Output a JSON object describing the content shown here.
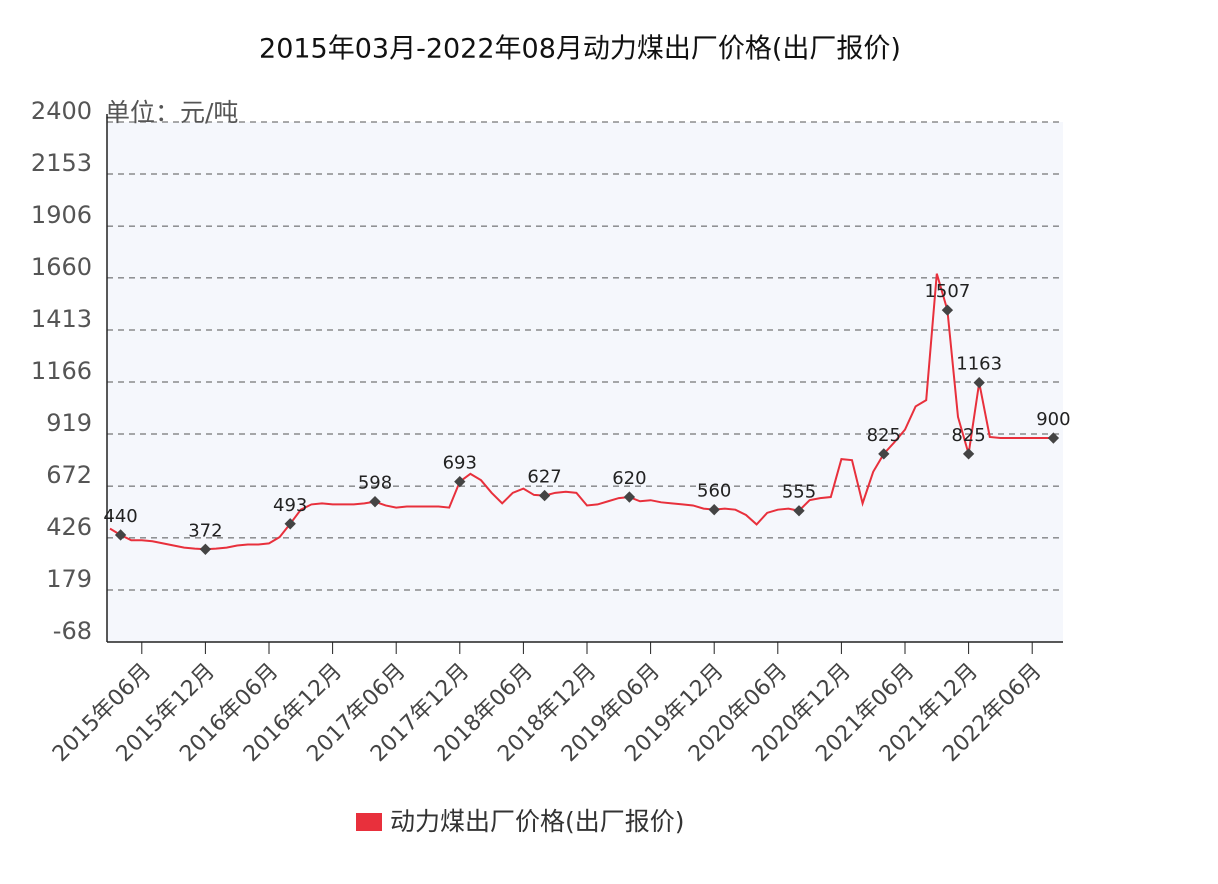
{
  "chart_data": {
    "type": "line",
    "title": "2015年03月-2022年08月动力煤出厂价格(出厂报价)",
    "unit_note": "单位：元/吨",
    "categories": [
      null,
      null,
      null,
      "2015年06月",
      null,
      null,
      null,
      null,
      null,
      "2015年12月",
      null,
      null,
      null,
      null,
      null,
      "2016年06月",
      null,
      null,
      null,
      null,
      null,
      "2016年12月",
      null,
      null,
      null,
      null,
      null,
      "2017年06月",
      null,
      null,
      null,
      null,
      null,
      "2017年12月",
      null,
      null,
      null,
      null,
      null,
      "2018年06月",
      null,
      null,
      null,
      null,
      null,
      "2018年12月",
      null,
      null,
      null,
      null,
      null,
      "2019年06月",
      null,
      null,
      null,
      null,
      null,
      "2019年12月",
      null,
      null,
      null,
      null,
      null,
      "2020年06月",
      null,
      null,
      null,
      null,
      null,
      "2020年12月",
      null,
      null,
      null,
      null,
      null,
      "2021年06月",
      null,
      null,
      null,
      null,
      null,
      "2021年12月",
      null,
      null,
      null,
      null,
      null,
      "2022年06月",
      null,
      null
    ],
    "series": [
      {
        "name": "动力煤出厂价格(出厂报价)",
        "color": "#e8303c",
        "values": [
          470,
          440,
          415,
          415,
          410,
          400,
          390,
          380,
          375,
          372,
          375,
          380,
          390,
          395,
          395,
          400,
          430,
          493,
          560,
          585,
          590,
          585,
          585,
          585,
          590,
          598,
          580,
          570,
          575,
          575,
          575,
          575,
          570,
          693,
          730,
          700,
          640,
          590,
          640,
          660,
          630,
          627,
          640,
          645,
          640,
          580,
          585,
          600,
          615,
          620,
          600,
          605,
          595,
          590,
          585,
          580,
          565,
          560,
          565,
          560,
          535,
          490,
          545,
          560,
          565,
          555,
          605,
          615,
          620,
          800,
          795,
          590,
          740,
          825,
          880,
          940,
          1050,
          1080,
          1680,
          1507,
          1000,
          825,
          1163,
          905,
          900,
          900,
          900,
          900,
          900,
          900
        ],
        "value_labels": [
          null,
          "440",
          null,
          null,
          null,
          null,
          null,
          null,
          null,
          "372",
          null,
          null,
          null,
          null,
          null,
          null,
          null,
          "493",
          null,
          null,
          null,
          null,
          null,
          null,
          null,
          "598",
          null,
          null,
          null,
          null,
          null,
          null,
          null,
          "693",
          null,
          null,
          null,
          null,
          null,
          null,
          null,
          "627",
          null,
          null,
          null,
          null,
          null,
          null,
          null,
          "620",
          null,
          null,
          null,
          null,
          null,
          null,
          null,
          "560",
          null,
          null,
          null,
          null,
          null,
          null,
          null,
          "555",
          null,
          null,
          null,
          null,
          null,
          null,
          null,
          "825",
          null,
          null,
          null,
          null,
          null,
          "1507",
          null,
          "825",
          "1163",
          null,
          null,
          null,
          null,
          null,
          null,
          "900"
        ]
      }
    ],
    "ylim": [
      -68,
      2400
    ],
    "yticks": [
      -68,
      179,
      426,
      672,
      919,
      1166,
      1413,
      1660,
      1906,
      2153,
      2400
    ],
    "grid": true
  }
}
